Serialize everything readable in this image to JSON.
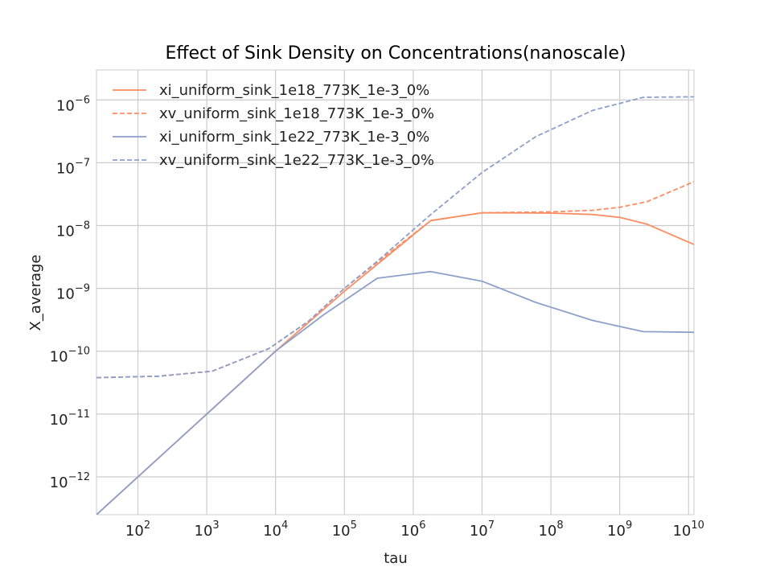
{
  "chart_data": {
    "type": "line",
    "title": "Effect of Sink Density on Concentrations(nanoscale)",
    "xlabel": "tau",
    "ylabel": "X_average",
    "xscale": "log",
    "yscale": "log",
    "xlim": [
      25,
      12000000000
    ],
    "ylim": [
      2.5e-13,
      3e-06
    ],
    "grid": true,
    "legend_position": "top-left",
    "xticks": [
      {
        "base": "10",
        "exp": "2",
        "value": 100
      },
      {
        "base": "10",
        "exp": "3",
        "value": 1000
      },
      {
        "base": "10",
        "exp": "4",
        "value": 10000
      },
      {
        "base": "10",
        "exp": "5",
        "value": 100000
      },
      {
        "base": "10",
        "exp": "6",
        "value": 1000000
      },
      {
        "base": "10",
        "exp": "7",
        "value": 10000000
      },
      {
        "base": "10",
        "exp": "8",
        "value": 100000000
      },
      {
        "base": "10",
        "exp": "9",
        "value": 1000000000
      },
      {
        "base": "10",
        "exp": "10",
        "value": 10000000000
      }
    ],
    "yticks": [
      {
        "base": "10",
        "exp": "−12",
        "value": 1e-12
      },
      {
        "base": "10",
        "exp": "−11",
        "value": 1e-11
      },
      {
        "base": "10",
        "exp": "−10",
        "value": 1e-10
      },
      {
        "base": "10",
        "exp": "−9",
        "value": 1e-09
      },
      {
        "base": "10",
        "exp": "−8",
        "value": 1e-08
      },
      {
        "base": "10",
        "exp": "−7",
        "value": 1e-07
      },
      {
        "base": "10",
        "exp": "−6",
        "value": 1e-06
      }
    ],
    "series": [
      {
        "name": "xi_uniform_sink_1e18_773K_1e-3_0%",
        "color": "#fc8d62",
        "dash": "solid",
        "points": [
          [
            25,
            2.5e-13
          ],
          [
            1000,
            1e-11
          ],
          [
            10000,
            1e-10
          ],
          [
            100000,
            9e-10
          ],
          [
            1800000,
            1.2e-08
          ],
          [
            10000000,
            1.6e-08
          ],
          [
            100000000,
            1.58e-08
          ],
          [
            400000000,
            1.5e-08
          ],
          [
            1000000000,
            1.35e-08
          ],
          [
            2500000000,
            1.05e-08
          ],
          [
            12000000000,
            5e-09
          ]
        ]
      },
      {
        "name": "xv_uniform_sink_1e18_773K_1e-3_0%",
        "color": "#fc8d62",
        "dash": "dashed",
        "points": [
          [
            25,
            3.8e-11
          ],
          [
            200,
            4e-11
          ],
          [
            1200,
            4.8e-11
          ],
          [
            8000,
            1.1e-10
          ],
          [
            30000,
            3e-10
          ],
          [
            100000,
            1e-09
          ],
          [
            300000,
            2.6e-09
          ],
          [
            1800000,
            1.2e-08
          ],
          [
            10000000,
            1.6e-08
          ],
          [
            100000000,
            1.65e-08
          ],
          [
            400000000,
            1.75e-08
          ],
          [
            1000000000,
            1.95e-08
          ],
          [
            2500000000,
            2.4e-08
          ],
          [
            12000000000,
            5e-08
          ]
        ]
      },
      {
        "name": "xi_uniform_sink_1e22_773K_1e-3_0%",
        "color": "#8da0cb",
        "dash": "solid",
        "points": [
          [
            25,
            2.5e-13
          ],
          [
            1000,
            1e-11
          ],
          [
            10000,
            1e-10
          ],
          [
            50000,
            3.8e-10
          ],
          [
            300000,
            1.45e-09
          ],
          [
            1800000,
            1.85e-09
          ],
          [
            10000000,
            1.3e-09
          ],
          [
            60000000,
            6e-10
          ],
          [
            400000000,
            3.1e-10
          ],
          [
            2200000000,
            2.05e-10
          ],
          [
            12000000000,
            2e-10
          ]
        ]
      },
      {
        "name": "xv_uniform_sink_1e22_773K_1e-3_0%",
        "color": "#8da0cb",
        "dash": "dashed",
        "points": [
          [
            25,
            3.8e-11
          ],
          [
            200,
            4e-11
          ],
          [
            1200,
            4.8e-11
          ],
          [
            8000,
            1.1e-10
          ],
          [
            30000,
            3e-10
          ],
          [
            100000,
            1e-09
          ],
          [
            300000,
            2.7e-09
          ],
          [
            1800000,
            1.5e-08
          ],
          [
            10000000,
            7e-08
          ],
          [
            60000000,
            2.6e-07
          ],
          [
            400000000,
            6.8e-07
          ],
          [
            2200000000,
            1.1e-06
          ],
          [
            12000000000,
            1.12e-06
          ]
        ]
      }
    ]
  }
}
